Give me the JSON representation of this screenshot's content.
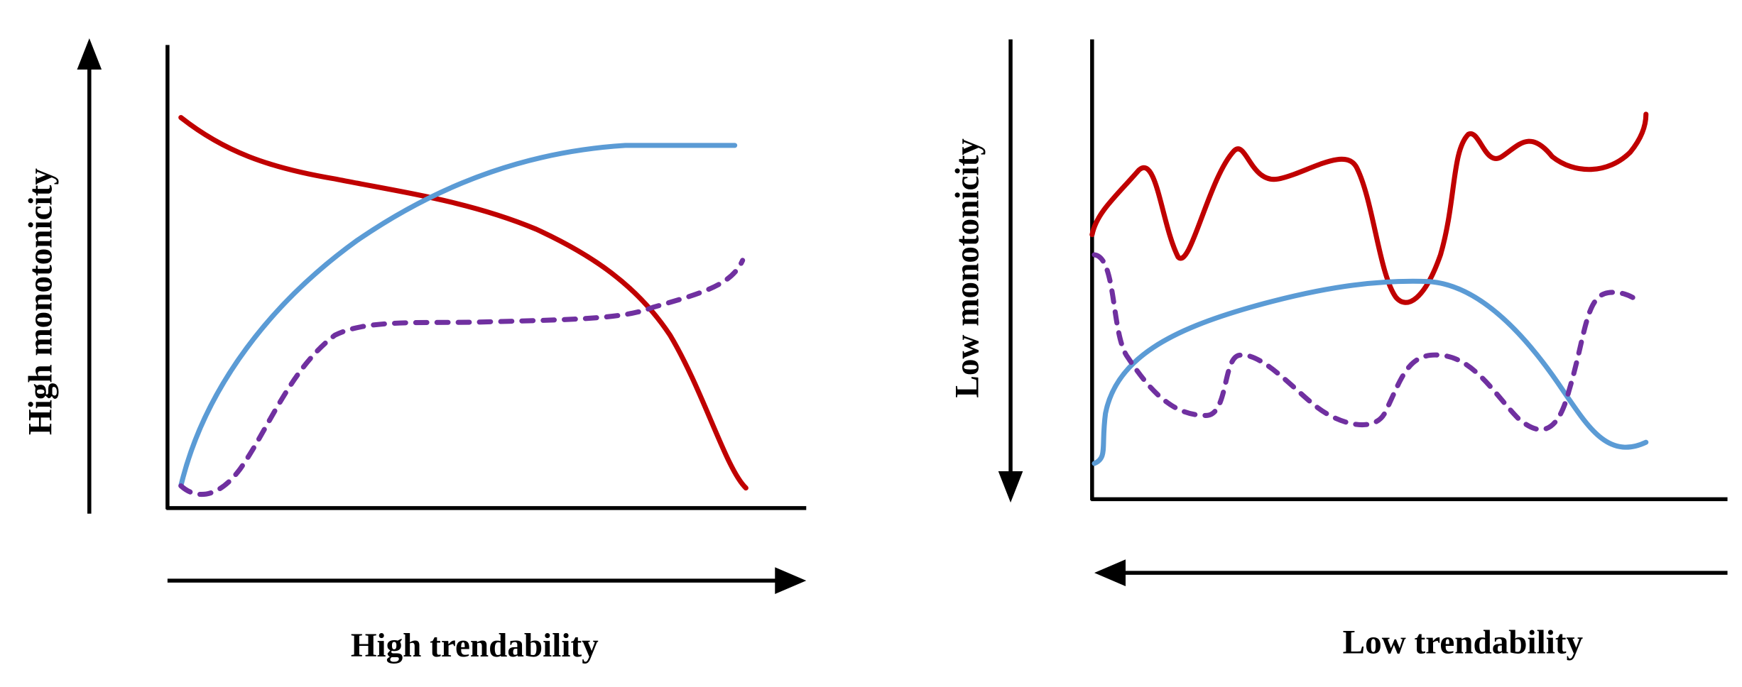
{
  "panels": [
    {
      "id": "high",
      "y_label": "High monotonicity",
      "x_label": "High trendability",
      "y_arrow_direction": "up",
      "x_arrow_direction": "right"
    },
    {
      "id": "low",
      "y_label": "Low monotonicity",
      "x_label": "Low trendability",
      "y_arrow_direction": "down",
      "x_arrow_direction": "left"
    }
  ],
  "colors": {
    "red_curve": "#C00000",
    "blue_curve": "#5B9BD5",
    "purple_dashed_curve": "#7030A0",
    "axes": "#000000"
  }
}
